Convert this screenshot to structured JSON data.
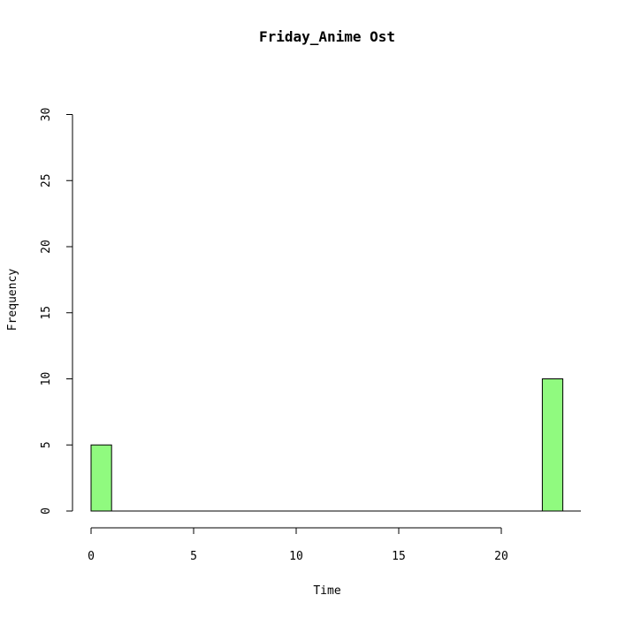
{
  "chart_data": {
    "type": "histogram",
    "title": "Friday_Anime Ost",
    "xlabel": "Time",
    "ylabel": "Frequency",
    "bins": [
      {
        "start": 0,
        "end": 1,
        "count": 5
      },
      {
        "start": 1,
        "end": 2,
        "count": 0
      },
      {
        "start": 2,
        "end": 3,
        "count": 0
      },
      {
        "start": 3,
        "end": 4,
        "count": 0
      },
      {
        "start": 4,
        "end": 5,
        "count": 0
      },
      {
        "start": 5,
        "end": 6,
        "count": 0
      },
      {
        "start": 6,
        "end": 7,
        "count": 0
      },
      {
        "start": 7,
        "end": 8,
        "count": 0
      },
      {
        "start": 8,
        "end": 9,
        "count": 0
      },
      {
        "start": 9,
        "end": 10,
        "count": 0
      },
      {
        "start": 10,
        "end": 11,
        "count": 0
      },
      {
        "start": 11,
        "end": 12,
        "count": 0
      },
      {
        "start": 12,
        "end": 13,
        "count": 0
      },
      {
        "start": 13,
        "end": 14,
        "count": 0
      },
      {
        "start": 14,
        "end": 15,
        "count": 0
      },
      {
        "start": 15,
        "end": 16,
        "count": 0
      },
      {
        "start": 16,
        "end": 17,
        "count": 0
      },
      {
        "start": 17,
        "end": 18,
        "count": 0
      },
      {
        "start": 18,
        "end": 19,
        "count": 0
      },
      {
        "start": 19,
        "end": 20,
        "count": 0
      },
      {
        "start": 20,
        "end": 21,
        "count": 0
      },
      {
        "start": 21,
        "end": 22,
        "count": 0
      },
      {
        "start": 22,
        "end": 23,
        "count": 10
      }
    ],
    "xticks": [
      0,
      5,
      10,
      15,
      20
    ],
    "yticks": [
      0,
      5,
      10,
      15,
      20,
      25,
      30
    ],
    "xlim": [
      0,
      23
    ],
    "ylim": [
      0,
      30
    ],
    "bar_color": "#90fa7f",
    "grid": false
  }
}
